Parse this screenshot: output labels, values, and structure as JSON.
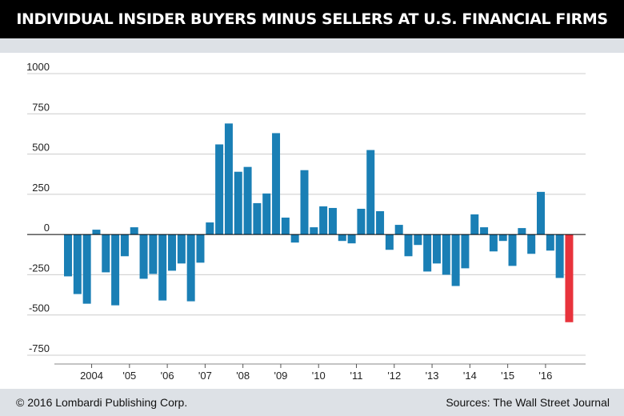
{
  "header": {
    "title": "INDIVIDUAL INSIDER BUYERS MINUS SELLERS AT U.S. FINANCIAL FIRMS"
  },
  "footer": {
    "copyright": "© 2016 Lombardi Publishing Corp.",
    "sources": "Sources: The Wall Street Journal"
  },
  "colors": {
    "bar": "#1a7fb5",
    "highlight_bar": "#e8333c",
    "grid": "#cccccc",
    "zero_line": "#000000",
    "label": "#222222"
  },
  "chart_data": {
    "type": "bar",
    "title": "INDIVIDUAL INSIDER BUYERS MINUS SELLERS AT U.S. FINANCIAL FIRMS",
    "xlabel": "",
    "ylabel": "",
    "ylim": [
      -750,
      1000
    ],
    "yticks": [
      1000,
      750,
      500,
      250,
      0,
      -250,
      -500,
      -750
    ],
    "grid": true,
    "legend": "none",
    "year_labels": [
      {
        "label": "2004",
        "index": 2.5
      },
      {
        "label": "'05",
        "index": 6.5
      },
      {
        "label": "'06",
        "index": 10.5
      },
      {
        "label": "'07",
        "index": 14.5
      },
      {
        "label": "'08",
        "index": 18.5
      },
      {
        "label": "'09",
        "index": 22.5
      },
      {
        "label": "'10",
        "index": 26.5
      },
      {
        "label": "'11",
        "index": 30.5
      },
      {
        "label": "'12",
        "index": 34.5
      },
      {
        "label": "'13",
        "index": 38.5
      },
      {
        "label": "'14",
        "index": 42.5
      },
      {
        "label": "'15",
        "index": 46.5
      },
      {
        "label": "'16",
        "index": 50.5
      }
    ],
    "values": [
      -260,
      -370,
      -430,
      30,
      -235,
      -440,
      -135,
      45,
      -275,
      -245,
      -410,
      -225,
      -180,
      -415,
      -175,
      75,
      560,
      690,
      390,
      420,
      195,
      255,
      630,
      105,
      -50,
      400,
      45,
      175,
      165,
      -40,
      -55,
      160,
      525,
      145,
      -95,
      60,
      -135,
      -65,
      -230,
      -180,
      -250,
      -320,
      -210,
      125,
      45,
      -105,
      -40,
      -195,
      40,
      -120,
      265,
      -100,
      -270,
      -545
    ],
    "highlight_index": 53
  }
}
